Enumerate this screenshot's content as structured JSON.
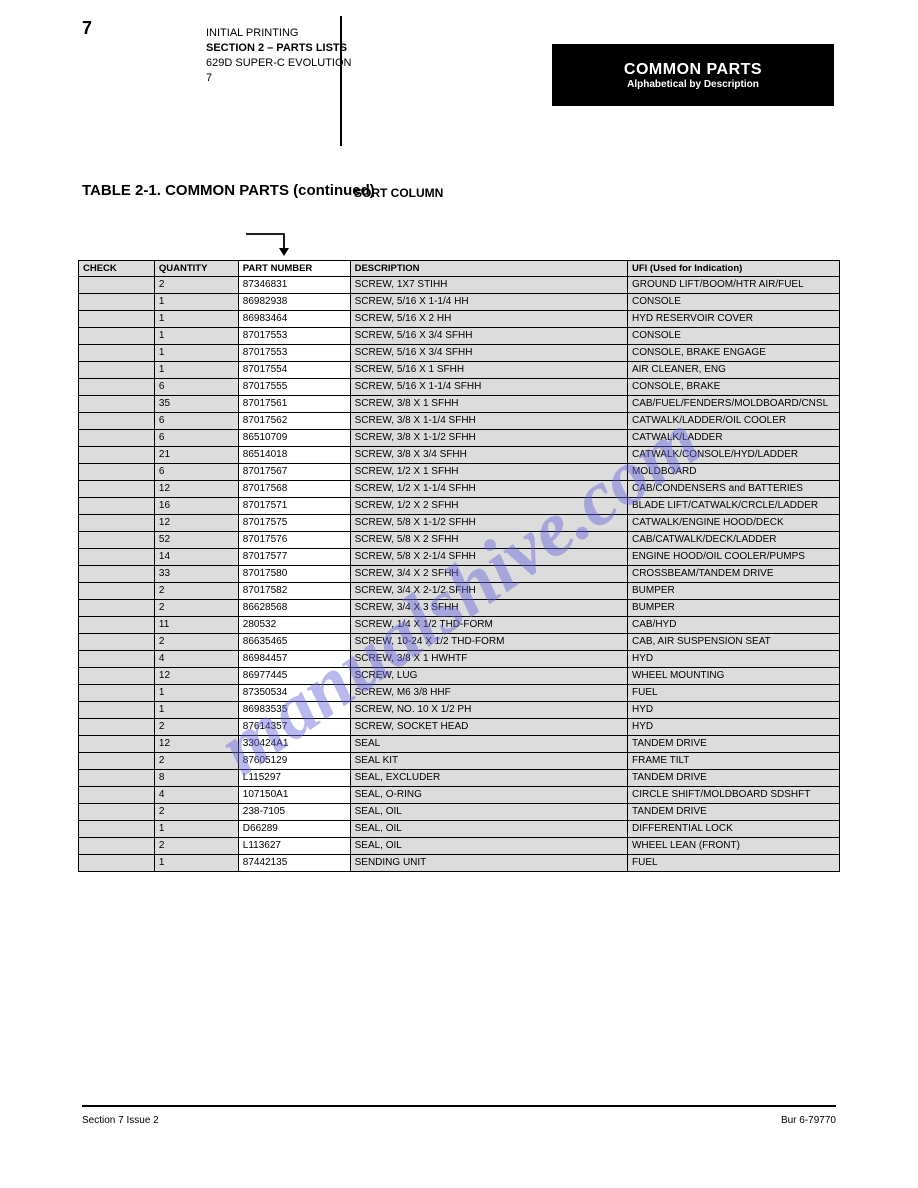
{
  "page_number": "7",
  "header": {
    "manual_line": "INITIAL PRINTING",
    "section_line": "SECTION 2 – PARTS LISTS",
    "model_line": "629D SUPER-C EVOLUTION",
    "issue_line": "7"
  },
  "badge": {
    "line1": "COMMON PARTS",
    "line2": "Alphabetical by Description"
  },
  "table_title": "TABLE 2-1. COMMON PARTS (continued)",
  "sort_label": "SORT COLUMN",
  "columns": [
    "CHECK",
    "QUANTITY",
    "PART NUMBER",
    "DESCRIPTION",
    "UFI (Used for Indication)"
  ],
  "rows": [
    [
      "",
      "2",
      "87346831",
      "SCREW, 1X7 STIHH",
      "GROUND LIFT/BOOM/HTR AIR/FUEL"
    ],
    [
      "",
      "1",
      "86982938",
      "SCREW, 5/16 X 1-1/4 HH",
      "CONSOLE"
    ],
    [
      "",
      "1",
      "86983464",
      "SCREW, 5/16 X 2 HH",
      "HYD RESERVOIR COVER"
    ],
    [
      "",
      "1",
      "87017553",
      "SCREW, 5/16 X 3/4 SFHH",
      "CONSOLE"
    ],
    [
      "",
      "1",
      "87017553",
      "SCREW, 5/16 X 3/4 SFHH",
      "CONSOLE, BRAKE ENGAGE"
    ],
    [
      "",
      "1",
      "87017554",
      "SCREW, 5/16 X 1 SFHH",
      "AIR CLEANER, ENG"
    ],
    [
      "",
      "6",
      "87017555",
      "SCREW, 5/16 X 1-1/4 SFHH",
      "CONSOLE, BRAKE"
    ],
    [
      "",
      "35",
      "87017561",
      "SCREW, 3/8 X 1 SFHH",
      "CAB/FUEL/FENDERS/MOLDBOARD/CNSL"
    ],
    [
      "",
      "6",
      "87017562",
      "SCREW, 3/8 X 1-1/4 SFHH",
      "CATWALK/LADDER/OIL COOLER"
    ],
    [
      "",
      "6",
      "86510709",
      "SCREW, 3/8 X 1-1/2 SFHH",
      "CATWALK/LADDER"
    ],
    [
      "",
      "21",
      "86514018",
      "SCREW, 3/8 X 3/4 SFHH",
      "CATWALK/CONSOLE/HYD/LADDER"
    ],
    [
      "",
      "6",
      "87017567",
      "SCREW, 1/2 X 1 SFHH",
      "MOLDBOARD"
    ],
    [
      "",
      "12",
      "87017568",
      "SCREW, 1/2 X 1-1/4 SFHH",
      "CAB/CONDENSERS and BATTERIES"
    ],
    [
      "",
      "16",
      "87017571",
      "SCREW, 1/2 X 2 SFHH",
      "BLADE LIFT/CATWALK/CRCLE/LADDER"
    ],
    [
      "",
      "12",
      "87017575",
      "SCREW, 5/8 X 1-1/2 SFHH",
      "CATWALK/ENGINE HOOD/DECK"
    ],
    [
      "",
      "52",
      "87017576",
      "SCREW, 5/8 X 2 SFHH",
      "CAB/CATWALK/DECK/LADDER"
    ],
    [
      "",
      "14",
      "87017577",
      "SCREW, 5/8 X 2-1/4 SFHH",
      "ENGINE HOOD/OIL COOLER/PUMPS"
    ],
    [
      "",
      "33",
      "87017580",
      "SCREW, 3/4 X 2 SFHH",
      "CROSSBEAM/TANDEM DRIVE"
    ],
    [
      "",
      "2",
      "87017582",
      "SCREW, 3/4 X 2-1/2 SFHH",
      "BUMPER"
    ],
    [
      "",
      "2",
      "86628568",
      "SCREW, 3/4 X 3 SFHH",
      "BUMPER"
    ],
    [
      "",
      "11",
      "280532",
      "SCREW, 1/4 X 1/2 THD-FORM",
      "CAB/HYD"
    ],
    [
      "",
      "2",
      "86635465",
      "SCREW, 10-24 X 1/2 THD-FORM",
      "CAB, AIR SUSPENSION SEAT"
    ],
    [
      "",
      "4",
      "86984457",
      "SCREW, 3/8 X 1 HWHTF",
      "HYD"
    ],
    [
      "",
      "12",
      "86977445",
      "SCREW, LUG",
      "WHEEL MOUNTING"
    ],
    [
      "",
      "1",
      "87350534",
      "SCREW, M6 3/8 HHF",
      "FUEL"
    ],
    [
      "",
      "1",
      "86983535",
      "SCREW, NO. 10 X 1/2 PH",
      "HYD"
    ],
    [
      "",
      "2",
      "87614357",
      "SCREW, SOCKET HEAD",
      "HYD"
    ],
    [
      "",
      "12",
      "330424A1",
      "SEAL",
      "TANDEM DRIVE"
    ],
    [
      "",
      "2",
      "87605129",
      "SEAL KIT",
      "FRAME TILT"
    ],
    [
      "",
      "8",
      "L115297",
      "SEAL, EXCLUDER",
      "TANDEM DRIVE"
    ],
    [
      "",
      "4",
      "107150A1",
      "SEAL, O-RING",
      "CIRCLE SHIFT/MOLDBOARD SDSHFT"
    ],
    [
      "",
      "2",
      "238-7105",
      "SEAL, OIL",
      "TANDEM DRIVE"
    ],
    [
      "",
      "1",
      "D66289",
      "SEAL, OIL",
      "DIFFERENTIAL LOCK"
    ],
    [
      "",
      "2",
      "L113627",
      "SEAL, OIL",
      "WHEEL LEAN (FRONT)"
    ],
    [
      "",
      "1",
      "87442135",
      "SENDING UNIT",
      "FUEL"
    ]
  ],
  "footer": {
    "left": "Section 7 Issue 2",
    "right": "Bur 6-79770"
  },
  "watermark": "manualshive.com"
}
